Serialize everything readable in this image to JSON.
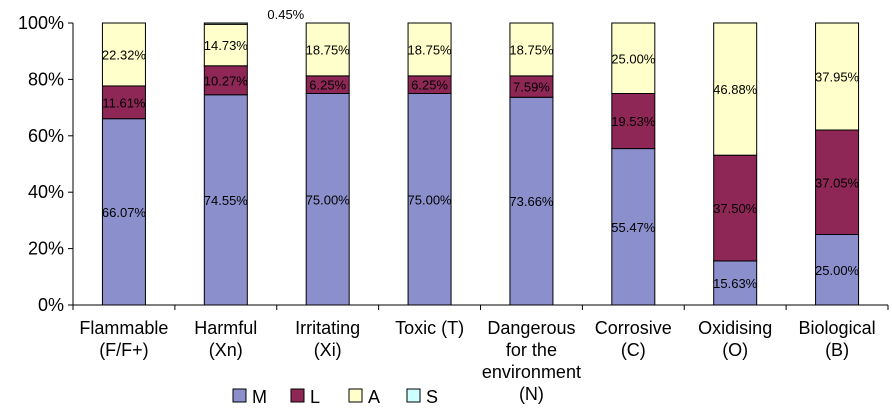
{
  "chart_data": {
    "type": "bar",
    "stacked": true,
    "title": "",
    "xlabel": "",
    "ylabel": "",
    "ylim": [
      0,
      100
    ],
    "y_ticks": [
      "0%",
      "20%",
      "40%",
      "60%",
      "80%",
      "100%"
    ],
    "categories": [
      [
        "Flammable",
        "(F/F+)"
      ],
      [
        "Harmful",
        "(Xn)"
      ],
      [
        "Irritating",
        "(Xi)"
      ],
      [
        "Toxic (T)"
      ],
      [
        "Dangerous",
        "for the",
        "environment",
        "(N)"
      ],
      [
        "Corrosive",
        "(C)"
      ],
      [
        "Oxidising",
        "(O)"
      ],
      [
        "Biological",
        "(B)"
      ]
    ],
    "series": [
      {
        "name": "M",
        "color": "#8B8FCC",
        "values": [
          66.07,
          74.55,
          75.0,
          75.0,
          73.66,
          55.47,
          15.63,
          25.0
        ],
        "labels": [
          "66.07%",
          "74.55%",
          "75.00%",
          "75.00%",
          "73.66%",
          "55.47%",
          "15.63%",
          "25.00%"
        ]
      },
      {
        "name": "L",
        "color": "#8E2755",
        "values": [
          11.61,
          10.27,
          6.25,
          6.25,
          7.59,
          19.53,
          37.5,
          37.05
        ],
        "labels": [
          "11.61%",
          "10.27%",
          "6.25%",
          "6.25%",
          "7.59%",
          "19.53%",
          "37.50%",
          "37.05%"
        ]
      },
      {
        "name": "A",
        "color": "#FFFFCC",
        "values": [
          22.32,
          14.73,
          18.75,
          18.75,
          18.75,
          25.0,
          46.88,
          37.95
        ],
        "labels": [
          "22.32%",
          "14.73%",
          "18.75%",
          "18.75%",
          "18.75%",
          "25.00%",
          "46.88%",
          "37.95%"
        ]
      },
      {
        "name": "S",
        "color": "#CCFFFF",
        "values": [
          0,
          0.45,
          0,
          0,
          0,
          0,
          0,
          0
        ],
        "labels": [
          "",
          "0.45%",
          "",
          "",
          "",
          "",
          "",
          ""
        ]
      }
    ],
    "legend_position": "bottom",
    "grid": false
  }
}
